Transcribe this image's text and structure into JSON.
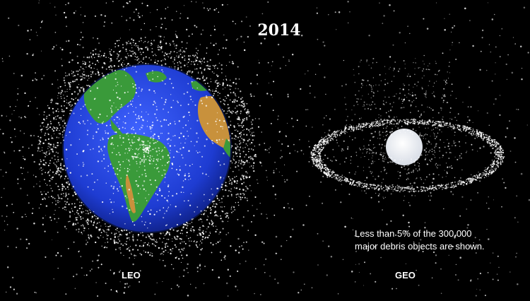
{
  "title": "2014",
  "labels": {
    "leo": "LEO",
    "geo": "GEO"
  },
  "note": {
    "line1": "Less than 5% of the 300,000",
    "line2": "major debris objects are shown."
  },
  "colors": {
    "background": "#000000",
    "ocean": "#1e3cd2",
    "land_green": "#3a9a3a",
    "land_desert": "#c8913c",
    "debris": "#ffffff"
  }
}
